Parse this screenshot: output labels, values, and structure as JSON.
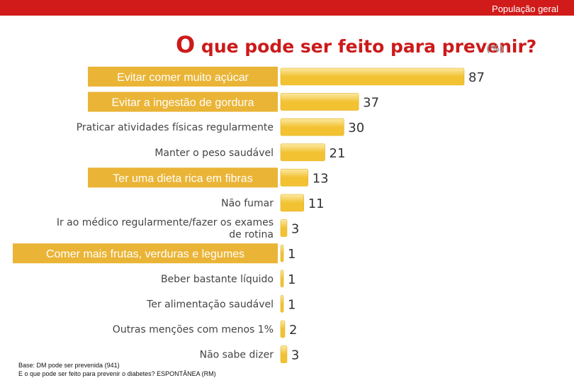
{
  "header": {
    "segment": "População geral"
  },
  "title_first": "O",
  "title_rest": "que pode ser feito para prevenir?",
  "unit": "(%)",
  "colors": {
    "bar": "#f2c233",
    "bar_light": "#fce9a4",
    "highlight_box": "#eab436",
    "topbar": "#d11a1a",
    "title": "#cc1a1a"
  },
  "chart_data": {
    "type": "bar",
    "orientation": "horizontal",
    "title": "O que pode ser feito para prevenir?",
    "unit": "%",
    "categories": [
      "Evitar comer muito açúcar",
      "Evitar a ingestão de gordura",
      "Praticar atividades físicas regularmente",
      "Manter o peso saudável",
      "Ter uma dieta rica em fibras",
      "Não fumar",
      "Ir ao médico regularmente/fazer os exames de rotina",
      "Comer mais frutas, verduras e legumes",
      "Beber bastante líquido",
      "Ter alimentação saudável",
      "Outras menções com menos 1%",
      "Não sabe dizer"
    ],
    "label_lines": [
      [
        "Evitar comer muito açúcar"
      ],
      [
        "Evitar a ingestão de gordura"
      ],
      [
        "Praticar atividades físicas regularmente"
      ],
      [
        "Manter o peso saudável"
      ],
      [
        "Ter uma dieta rica em fibras"
      ],
      [
        "Não fumar"
      ],
      [
        "Ir ao médico regularmente/fazer os exames",
        "de rotina"
      ],
      [
        "Comer mais frutas, verduras e legumes"
      ],
      [
        "Beber bastante líquido"
      ],
      [
        "Ter alimentação saudável"
      ],
      [
        "Outras menções com menos 1%"
      ],
      [
        "Não sabe dizer"
      ]
    ],
    "highlighted": [
      true,
      true,
      false,
      false,
      true,
      false,
      false,
      true,
      false,
      false,
      false,
      false
    ],
    "values": [
      87,
      37,
      30,
      21,
      13,
      11,
      3,
      1,
      1,
      1,
      2,
      3
    ],
    "xlim": [
      0,
      87
    ],
    "grid": false,
    "legend": "none"
  },
  "footnote": {
    "line1": "Base: DM pode ser prevenida (941)",
    "line2": "E o que pode ser feito para prevenir o diabetes? ESPONTÂNEA (RM)"
  }
}
